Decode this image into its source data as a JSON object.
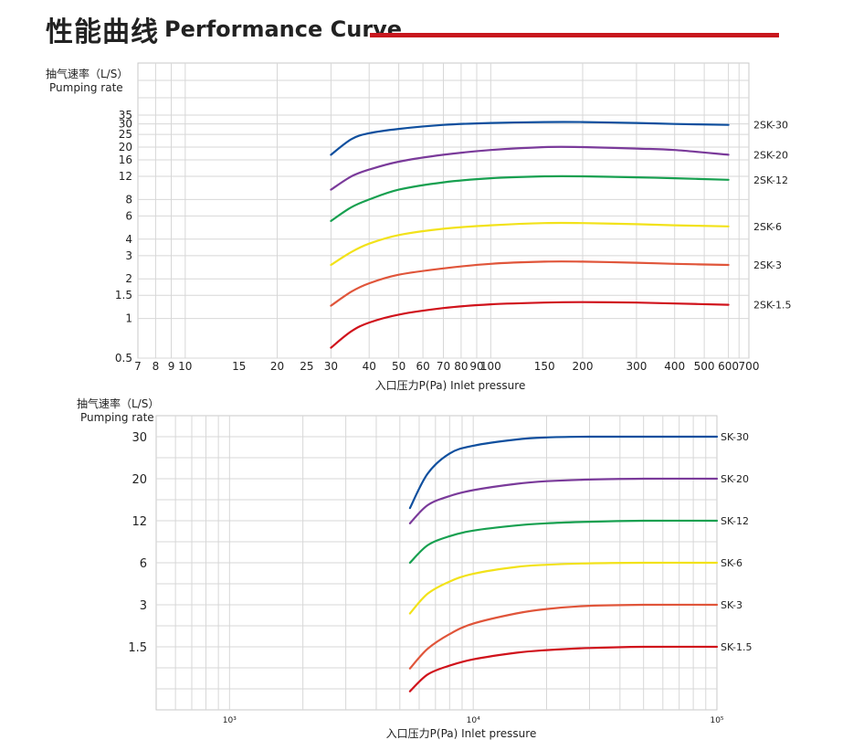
{
  "header": {
    "title_cn": "性能曲线",
    "title_en": "Performance Curve",
    "accent_color": "#c8161d"
  },
  "chart_data": [
    {
      "type": "line",
      "ylabel_cn": "抽气速率（L/S）",
      "ylabel_en": "Pumping rate",
      "xlabel": "入口压力P(Pa) Inlet pressure",
      "x_scale": "log",
      "y_scale": "log",
      "xlim": [
        7,
        700
      ],
      "ylim": [
        0.5,
        35
      ],
      "x_ticks": [
        "7",
        "8",
        "9",
        "10",
        "15",
        "20",
        "25",
        "30",
        "40",
        "50",
        "60",
        "70",
        "80",
        "90",
        "100",
        "150",
        "200",
        "300",
        "400",
        "500",
        "600",
        "700"
      ],
      "x_tick_values": [
        7,
        8,
        9,
        10,
        15,
        20,
        25,
        30,
        40,
        50,
        60,
        70,
        80,
        90,
        100,
        150,
        200,
        300,
        400,
        500,
        600,
        700
      ],
      "y_ticks": [
        "0.5",
        "1",
        "1.5",
        "2",
        "3",
        "4",
        "6",
        "8",
        "12",
        "16",
        "20",
        "25",
        "30",
        "35"
      ],
      "y_tick_values": [
        0.5,
        1,
        1.5,
        2,
        3,
        4,
        6,
        8,
        12,
        16,
        20,
        25,
        30,
        35
      ],
      "grid": true,
      "series": [
        {
          "name": "2SK-30",
          "color": "#0f4f9e",
          "x": [
            30,
            35,
            40,
            50,
            70,
            100,
            150,
            200,
            300,
            400,
            600
          ],
          "y": [
            17.5,
            23,
            25.5,
            27.5,
            29.5,
            30.5,
            31,
            31,
            30.5,
            30,
            29.5
          ]
        },
        {
          "name": "2SK-20",
          "color": "#7a3a9a",
          "x": [
            30,
            35,
            40,
            50,
            70,
            100,
            150,
            200,
            300,
            400,
            600
          ],
          "y": [
            9.5,
            12,
            13.5,
            15.5,
            17.5,
            19,
            20,
            20,
            19.5,
            19,
            17.5
          ]
        },
        {
          "name": "2SK-12",
          "color": "#17a050",
          "x": [
            30,
            35,
            40,
            50,
            70,
            100,
            150,
            200,
            300,
            400,
            600
          ],
          "y": [
            5.5,
            7,
            8,
            9.5,
            10.8,
            11.6,
            12,
            12,
            11.8,
            11.6,
            11.3
          ]
        },
        {
          "name": "2SK-6",
          "color": "#f2e21a",
          "x": [
            30,
            35,
            40,
            50,
            70,
            100,
            150,
            200,
            300,
            400,
            600
          ],
          "y": [
            2.55,
            3.2,
            3.7,
            4.3,
            4.8,
            5.1,
            5.3,
            5.3,
            5.2,
            5.1,
            5.0
          ]
        },
        {
          "name": "2SK-3",
          "color": "#e0553a",
          "x": [
            30,
            35,
            40,
            50,
            70,
            100,
            150,
            200,
            300,
            400,
            600
          ],
          "y": [
            1.25,
            1.6,
            1.85,
            2.15,
            2.4,
            2.6,
            2.7,
            2.7,
            2.65,
            2.6,
            2.55
          ]
        },
        {
          "name": "2SK-1.5",
          "color": "#d0121b",
          "x": [
            30,
            35,
            40,
            50,
            70,
            100,
            150,
            200,
            300,
            400,
            600
          ],
          "y": [
            0.6,
            0.8,
            0.93,
            1.07,
            1.2,
            1.28,
            1.32,
            1.33,
            1.32,
            1.3,
            1.27
          ]
        }
      ]
    },
    {
      "type": "line",
      "ylabel_cn": "抽气速率（L/S）",
      "ylabel_en": "Pumping rate",
      "xlabel": "入口压力P(Pa) Inlet pressure",
      "x_scale": "log",
      "xlim": [
        500,
        100000
      ],
      "x_ticks": [
        "10³",
        "10⁴",
        "10⁵"
      ],
      "x_tick_values": [
        1000,
        10000,
        100000
      ],
      "y_ticks": [
        "30",
        "20",
        "12",
        "6",
        "3",
        "1.5"
      ],
      "grid": true,
      "series": [
        {
          "name": "SK-30",
          "color": "#0f4f9e",
          "x": [
            5500,
            6500,
            8000,
            10000,
            15000,
            20000,
            30000,
            50000,
            100000
          ],
          "y": [
            14,
            21,
            25.5,
            27.5,
            29.2,
            29.8,
            30,
            30,
            30
          ]
        },
        {
          "name": "SK-20",
          "color": "#7a3a9a",
          "x": [
            5500,
            6500,
            8000,
            10000,
            15000,
            20000,
            30000,
            50000,
            100000
          ],
          "y": [
            11.5,
            14.5,
            16.2,
            17.4,
            18.8,
            19.4,
            19.8,
            20,
            20
          ]
        },
        {
          "name": "SK-12",
          "color": "#17a050",
          "x": [
            5500,
            6500,
            8000,
            10000,
            15000,
            20000,
            30000,
            50000,
            100000
          ],
          "y": [
            6,
            8,
            9.3,
            10.2,
            11.1,
            11.5,
            11.8,
            12,
            12
          ]
        },
        {
          "name": "SK-6",
          "color": "#f2e21a",
          "x": [
            5500,
            6500,
            8000,
            10000,
            15000,
            20000,
            30000,
            50000,
            100000
          ],
          "y": [
            2.6,
            3.6,
            4.4,
            5.0,
            5.6,
            5.8,
            5.95,
            6,
            6
          ]
        },
        {
          "name": "SK-3",
          "color": "#e0553a",
          "x": [
            5500,
            6500,
            8000,
            10000,
            15000,
            20000,
            30000,
            50000,
            100000
          ],
          "y": [
            1.05,
            1.45,
            1.85,
            2.2,
            2.6,
            2.8,
            2.95,
            3,
            3
          ]
        },
        {
          "name": "SK-1.5",
          "color": "#d0121b",
          "x": [
            5500,
            6500,
            8000,
            10000,
            15000,
            20000,
            30000,
            50000,
            100000
          ],
          "y": [
            0.72,
            0.95,
            1.1,
            1.22,
            1.36,
            1.42,
            1.47,
            1.5,
            1.5
          ]
        }
      ]
    }
  ]
}
